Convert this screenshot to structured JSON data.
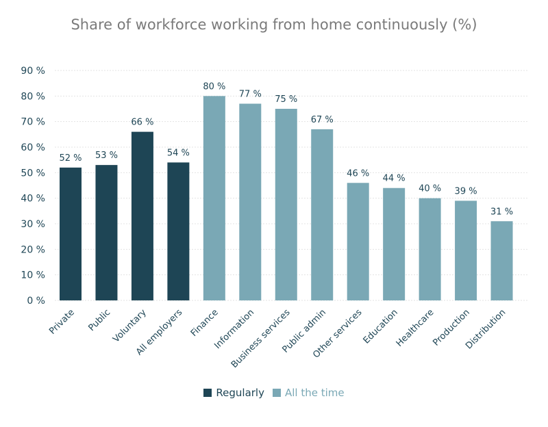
{
  "chart_data": {
    "type": "bar",
    "title": "Share of workforce working from home continuously (%)",
    "xlabel": "",
    "ylabel": "",
    "ylim": [
      0,
      90
    ],
    "yticks": [
      "0 %",
      "10 %",
      "20 %",
      "30 %",
      "40 %",
      "50 %",
      "60 %",
      "70 %",
      "80 %",
      "90 %"
    ],
    "grid": true,
    "legend_position": "bottom-center",
    "categories": [
      "Private",
      "Public",
      "Voluntary",
      "All employers",
      "Finance",
      "Information",
      "Business services",
      "Public admin",
      "Other services",
      "Education",
      "Healthcare",
      "Production",
      "Distribution"
    ],
    "series": [
      {
        "name": "Regularly",
        "color": "#1e4555",
        "values": [
          52,
          53,
          66,
          54,
          null,
          null,
          null,
          null,
          null,
          null,
          null,
          null,
          null
        ]
      },
      {
        "name": "All the time",
        "color": "#7aa8b5",
        "values": [
          null,
          null,
          null,
          null,
          80,
          77,
          75,
          67,
          46,
          44,
          40,
          39,
          31
        ]
      }
    ],
    "data_labels": [
      "52 %",
      "53 %",
      "66 %",
      "54 %",
      "80 %",
      "77 %",
      "75 %",
      "67 %",
      "46 %",
      "44 %",
      "40 %",
      "39 %",
      "31 %"
    ]
  },
  "colors": {
    "axis_text": "#1e4555",
    "title": "#7a7a7a",
    "grid": "#e3e3e3"
  }
}
